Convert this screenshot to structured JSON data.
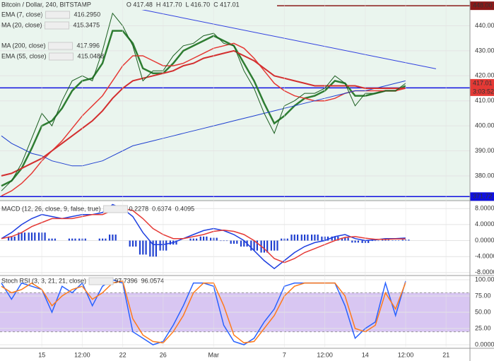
{
  "chart_data": [
    {
      "type": "price",
      "title": "Bitcoin / Dollar, 240, BITSTAMP",
      "ohlc": [
        "O 417.48",
        "H 417.70",
        "L 416.70",
        "C 417.01"
      ],
      "background": "#eaf5ee",
      "close_color": "#1b5e20",
      "close": [
        374,
        378,
        385,
        395,
        405,
        400,
        410,
        418,
        420,
        418,
        430,
        445,
        440,
        432,
        418,
        422,
        422,
        428,
        432,
        433,
        436,
        437,
        433,
        432,
        422,
        415,
        405,
        397,
        408,
        410,
        413,
        413,
        415,
        420,
        417,
        408,
        413,
        413,
        414,
        414,
        417,
        null,
        null,
        null,
        null,
        null,
        null
      ],
      "series": [
        {
          "name": "EMA (7, close)",
          "color": "#2e7d32",
          "width": 2.5,
          "legend_value": "416.2950",
          "values": [
            376,
            378,
            383,
            391,
            400,
            402,
            407,
            414,
            418,
            419,
            425,
            438,
            438,
            433,
            423,
            421,
            421,
            425,
            430,
            432,
            434,
            436,
            434,
            432,
            425,
            418,
            409,
            401,
            404,
            408,
            411,
            412,
            414,
            418,
            417,
            412,
            412,
            413,
            414,
            414,
            416,
            null,
            null,
            null,
            null,
            null,
            null
          ]
        },
        {
          "name": "MA (20, close)",
          "color": "#e53935",
          "width": 1.5,
          "legend_value": "415.3475",
          "values": [
            372,
            374,
            377,
            381,
            386,
            390,
            394,
            399,
            404,
            408,
            412,
            418,
            424,
            428,
            428,
            426,
            424,
            424,
            425,
            427,
            429,
            431,
            432,
            433,
            431,
            427,
            422,
            417,
            414,
            412,
            411,
            410,
            410,
            411,
            413,
            414,
            414,
            414,
            414,
            414,
            415,
            null,
            null,
            null,
            null,
            null,
            null
          ]
        },
        {
          "name": "MA (200, close)",
          "color": "#1e3fd0",
          "width": 1,
          "legend_value": "417.996",
          "values": [
            396,
            393,
            391,
            389,
            388,
            386,
            385,
            384,
            384,
            385,
            386,
            388,
            390,
            392,
            393,
            394,
            395,
            396,
            397,
            398,
            399,
            400,
            401,
            402,
            403,
            404,
            405,
            406,
            407,
            408,
            409,
            410,
            411,
            412,
            413,
            414,
            414,
            415,
            416,
            417,
            418,
            null,
            null,
            null,
            null,
            null,
            null
          ]
        },
        {
          "name": "EMA (55, close)",
          "color": "#d32f2f",
          "width": 2,
          "legend_value": "415.0488",
          "values": [
            380,
            381,
            383,
            385,
            387,
            390,
            393,
            396,
            399,
            402,
            406,
            411,
            415,
            418,
            419,
            420,
            421,
            422,
            424,
            425,
            427,
            428,
            429,
            430,
            428,
            426,
            423,
            420,
            419,
            418,
            417,
            416,
            416,
            416,
            416,
            416,
            415,
            415,
            415,
            415,
            415,
            null,
            null,
            null,
            null,
            null,
            null
          ]
        }
      ],
      "trendline": {
        "x": [
          12,
          43
        ],
        "values": [
          448,
          422.8
        ],
        "color": "#3040e0"
      },
      "levels": [
        {
          "value": 448,
          "label": "448.00",
          "color": "#8b1a1a"
        },
        {
          "value": 415.16,
          "label": "415.16",
          "color": "#1010e0"
        },
        {
          "value": 371.72,
          "label": "371.72",
          "color": "#1010e0"
        }
      ],
      "last_price": {
        "value": 417.01,
        "label": "417.01",
        "color": "#e53935"
      },
      "countdown": "3:03:52",
      "ylim": [
        370.1,
        450.3
      ],
      "yticks": [
        {
          "value": 380,
          "label": "380.00"
        },
        {
          "value": 390,
          "label": "390.00"
        },
        {
          "value": 400,
          "label": "400.00"
        },
        {
          "value": 410,
          "label": "410.00"
        },
        {
          "value": 420,
          "label": "420.00"
        },
        {
          "value": 430,
          "label": "430.00"
        },
        {
          "value": 440,
          "label": "440.00"
        }
      ]
    },
    {
      "type": "macd",
      "title": "MACD (12, 26, close, 9, false, true)",
      "series": [
        {
          "kind": "histogram",
          "color": "#2040d0",
          "legend_value": "0.2278",
          "values": [
            0,
            1,
            2,
            2,
            2,
            0.5,
            0,
            0.5,
            0.5,
            0,
            0.5,
            1.5,
            0,
            -1.5,
            -3.5,
            -4,
            -2.5,
            -1,
            0,
            0.5,
            1,
            0.7,
            -0.1,
            -0.8,
            -1.5,
            -2.5,
            -3,
            -2.5,
            0.5,
            1.5,
            1.5,
            1.5,
            1,
            1,
            0.7,
            -0.5,
            -0.6,
            -0.1,
            0.2,
            0.1,
            0.23,
            null,
            null,
            null,
            null,
            null,
            null
          ]
        },
        {
          "kind": "line",
          "color": "#1e3fe0",
          "legend_value": "0.6374",
          "values": [
            0.5,
            2,
            4,
            5.5,
            6.5,
            6,
            5.5,
            6,
            6.5,
            6.5,
            7,
            9,
            8,
            6,
            2,
            -1,
            -1,
            -0.5,
            0.5,
            1.5,
            2.5,
            3,
            2.5,
            1.5,
            0,
            -2.5,
            -5,
            -7,
            -5,
            -3,
            -1.5,
            -0.5,
            0,
            1,
            1.5,
            0.5,
            0,
            0.2,
            0.5,
            0.5,
            0.64,
            null,
            null,
            null,
            null,
            null,
            null
          ]
        },
        {
          "kind": "line",
          "color": "#e53935",
          "legend_value": "0.4095",
          "values": [
            0.5,
            1,
            2,
            3.5,
            4.5,
            5.5,
            5.5,
            5.5,
            6,
            6.5,
            6.5,
            7.5,
            8,
            7.5,
            5.5,
            3,
            1.5,
            0.5,
            0.5,
            1,
            1.5,
            2.3,
            2.6,
            2.3,
            1.5,
            0,
            -2,
            -4.5,
            -5.5,
            -4.5,
            -3,
            -2,
            -1,
            0,
            0.8,
            1,
            0.6,
            0.3,
            0.3,
            0.4,
            0.41,
            null,
            null,
            null,
            null,
            null,
            null
          ]
        }
      ],
      "ylim": [
        -8.73,
        9.27
      ],
      "yticks": [
        {
          "value": -8,
          "label": "-8.0000"
        },
        {
          "value": -4,
          "label": "-4.0000"
        },
        {
          "value": 0,
          "label": "0.0000"
        },
        {
          "value": 4,
          "label": "4.0000"
        },
        {
          "value": 8,
          "label": "8.0000"
        }
      ]
    },
    {
      "type": "stoch",
      "title": "Stoch RSI (3, 3, 21, 21, close)",
      "band": [
        20,
        80
      ],
      "band_color": "#d8c6f2",
      "categories": [
        null,
        null,
        null,
        null,
        "15",
        null,
        null,
        null,
        "12:00",
        null,
        null,
        null,
        "22",
        null,
        null,
        null,
        "26",
        null,
        null,
        null,
        null,
        "Mar",
        null,
        null,
        null,
        null,
        null,
        null,
        "7",
        null,
        null,
        null,
        "12:00",
        null,
        null,
        null,
        "14",
        null,
        null,
        null,
        "12:00",
        null,
        null,
        null,
        "21",
        null,
        null
      ],
      "series": [
        {
          "kind": "line",
          "color": "#2962ff",
          "legend_value": "97.7396",
          "values": [
            95,
            70,
            95,
            90,
            85,
            50,
            90,
            80,
            95,
            60,
            90,
            100,
            95,
            20,
            10,
            0,
            5,
            30,
            60,
            95,
            95,
            90,
            30,
            5,
            0,
            10,
            35,
            55,
            90,
            95,
            95,
            95,
            95,
            95,
            60,
            10,
            25,
            35,
            95,
            45,
            98,
            null,
            null,
            null,
            null,
            null,
            null
          ]
        },
        {
          "kind": "line",
          "color": "#ff7a1a",
          "legend_value": "96.0574",
          "values": [
            90,
            80,
            85,
            95,
            85,
            60,
            75,
            85,
            90,
            70,
            80,
            95,
            98,
            40,
            15,
            5,
            3,
            20,
            45,
            80,
            95,
            95,
            60,
            15,
            3,
            5,
            25,
            45,
            75,
            90,
            95,
            95,
            95,
            95,
            75,
            25,
            20,
            30,
            80,
            55,
            96,
            null,
            null,
            null,
            null,
            null,
            null
          ]
        }
      ],
      "ylim": [
        -5.4,
        106.5
      ],
      "yticks": [
        {
          "value": 0,
          "label": "0.0000"
        },
        {
          "value": 25,
          "label": "25.00"
        },
        {
          "value": 50,
          "label": "50.00"
        },
        {
          "value": 75,
          "label": "75.00"
        },
        {
          "value": 100,
          "label": "100.00"
        }
      ]
    }
  ]
}
